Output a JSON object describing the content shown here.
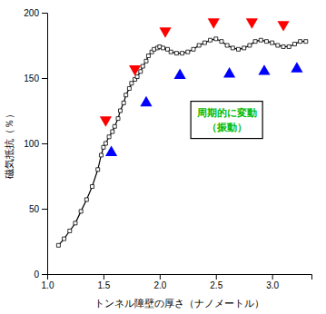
{
  "chart_data": {
    "type": "line",
    "title": "",
    "xlabel": "トンネル障壁の厚さ（ナノメートル）",
    "ylabel": "磁気抵抗（％）",
    "xlim": [
      1.0,
      3.35
    ],
    "ylim": [
      0,
      200
    ],
    "xticks": [
      {
        "value": 1.0,
        "label": "1.0"
      },
      1.5,
      {
        "value": 2.0,
        "label": "2.0"
      },
      2.5,
      {
        "value": 3.0,
        "label": "3.0"
      }
    ],
    "yticks": [
      0,
      50,
      100,
      150,
      200
    ],
    "grid": false,
    "background_color": "#ffffff",
    "series": [
      {
        "type": "line",
        "marker": "square",
        "color": "#000000",
        "x": [
          1.1,
          1.15,
          1.2,
          1.25,
          1.3,
          1.35,
          1.4,
          1.45,
          1.48,
          1.5,
          1.52,
          1.55,
          1.58,
          1.6,
          1.63,
          1.65,
          1.68,
          1.7,
          1.73,
          1.75,
          1.78,
          1.8,
          1.83,
          1.85,
          1.88,
          1.9,
          1.93,
          1.95,
          1.98,
          2.0,
          2.03,
          2.07,
          2.1,
          2.15,
          2.2,
          2.25,
          2.3,
          2.35,
          2.4,
          2.45,
          2.5,
          2.55,
          2.6,
          2.65,
          2.7,
          2.75,
          2.8,
          2.85,
          2.9,
          2.95,
          3.0,
          3.05,
          3.1,
          3.15,
          3.2,
          3.25,
          3.3
        ],
        "values": [
          22,
          27,
          33,
          39,
          48,
          57,
          67,
          80,
          91,
          97,
          100,
          105,
          109,
          113,
          119,
          125,
          131,
          137,
          142,
          146,
          149,
          151,
          155,
          159,
          163,
          167,
          170,
          172,
          173,
          174,
          173,
          172,
          170,
          169,
          169,
          170,
          172,
          175,
          177,
          179,
          180,
          178,
          175,
          173,
          172,
          173,
          175,
          178,
          179,
          178,
          177,
          175,
          174,
          174,
          176,
          178,
          178
        ]
      },
      {
        "type": "scatter",
        "marker": "triangle-down",
        "color": "#ff0000",
        "x": [
          1.52,
          1.78,
          2.05,
          2.48,
          2.82,
          3.1
        ],
        "values": [
          118,
          157,
          186,
          193,
          193,
          191
        ]
      },
      {
        "type": "scatter",
        "marker": "triangle-up",
        "color": "#0000ff",
        "x": [
          1.57,
          1.88,
          2.18,
          2.62,
          2.93,
          3.22
        ],
        "values": [
          93,
          131,
          152,
          153,
          155,
          157
        ]
      }
    ],
    "annotations": [
      {
        "text": [
          "周期的に変動",
          "（振動）"
        ],
        "x": 2.6,
        "y": 118,
        "color": "#00bb00"
      }
    ]
  }
}
